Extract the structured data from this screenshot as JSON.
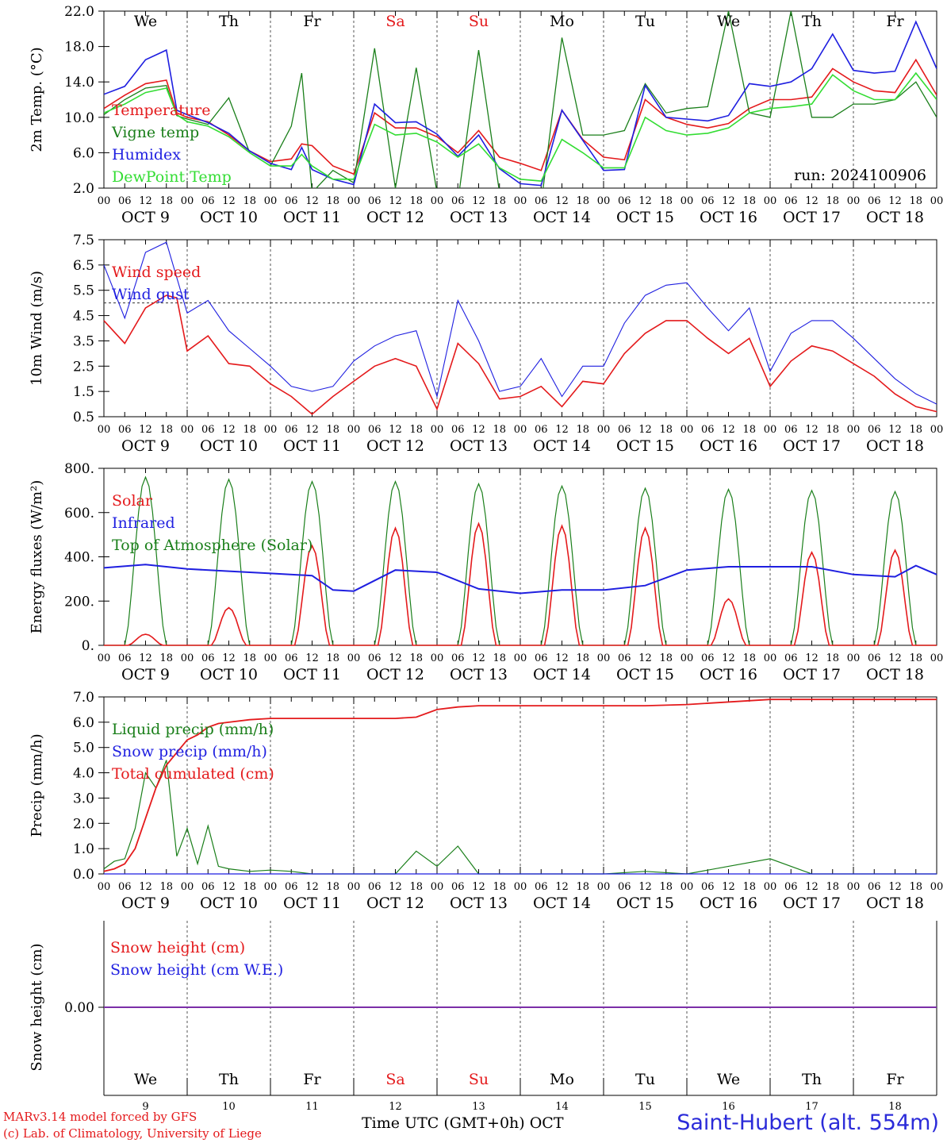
{
  "footer": {
    "model": "MARv3.14 model forced by GFS",
    "credit": "(c) Lab. of Climatology, University of Liege",
    "xlabel": "Time UTC (GMT+0h) OCT",
    "station": "Saint-Hubert (alt. 554m)"
  },
  "days": {
    "names": [
      "We",
      "Th",
      "Fr",
      "Sa",
      "Su",
      "Mo",
      "Tu",
      "We",
      "Th",
      "Fr"
    ],
    "weekend_color": "#e41a1c",
    "dates": [
      "OCT  9",
      "OCT 10",
      "OCT 11",
      "OCT 12",
      "OCT 13",
      "OCT 14",
      "OCT 15",
      "OCT 16",
      "OCT 17",
      "OCT 18"
    ],
    "numbers": [
      "9",
      "10",
      "11",
      "12",
      "13",
      "14",
      "15",
      "16",
      "17",
      "18"
    ],
    "hours": [
      "00",
      "06",
      "12",
      "18"
    ]
  },
  "chart_data": [
    {
      "type": "line",
      "ylabel": "2m Temp. (°C)",
      "ylim": [
        2.0,
        22.0
      ],
      "yticks": [
        "2.0",
        "6.0",
        "10.0",
        "14.0",
        "18.0",
        "22.0"
      ],
      "run": "run: 2024100906",
      "x_hours": [
        0,
        6,
        12,
        18,
        21,
        24,
        30,
        36,
        42,
        48,
        54,
        57,
        60,
        66,
        72,
        78,
        84,
        90,
        96,
        102,
        108,
        114,
        120,
        126,
        132,
        138,
        144,
        150,
        156,
        162,
        168,
        174,
        180,
        186,
        192,
        198,
        204,
        210,
        216,
        222,
        228,
        234,
        240
      ],
      "series": [
        {
          "name": "Temperature",
          "color": "#e41a1c",
          "values": [
            11.0,
            12.5,
            13.8,
            14.2,
            10.5,
            10.0,
            9.5,
            8.0,
            6.2,
            5.0,
            5.3,
            7.0,
            6.8,
            4.5,
            3.6,
            10.5,
            8.8,
            8.8,
            7.8,
            6.0,
            8.5,
            5.5,
            4.8,
            4.0,
            10.8,
            7.5,
            5.5,
            5.2,
            12.0,
            10.0,
            9.2,
            8.8,
            9.3,
            11.0,
            12.0,
            12.0,
            12.3,
            15.5,
            14.0,
            13.0,
            12.8,
            16.5,
            12.5
          ]
        },
        {
          "name": "Vigne temp",
          "color": "#1a7f1a",
          "values": [
            10.3,
            12.0,
            13.3,
            13.6,
            10.2,
            9.8,
            9.2,
            12.2,
            6.0,
            4.5,
            9.0,
            15.0,
            1.5,
            4.0,
            2.6,
            17.8,
            2.0,
            15.6,
            1.5,
            0.5,
            17.6,
            1.5,
            0.8,
            0.2,
            19.0,
            8.0,
            8.0,
            8.5,
            13.8,
            10.5,
            11.0,
            11.2,
            22.0,
            10.5,
            10.0,
            22.0,
            10.0,
            10.0,
            11.5,
            11.5,
            12.0,
            14.0,
            10.0
          ]
        },
        {
          "name": "Humidex",
          "color": "#1f1fe0",
          "values": [
            12.6,
            13.5,
            16.5,
            17.6,
            10.8,
            10.3,
            9.4,
            8.2,
            6.2,
            4.8,
            4.1,
            6.6,
            4.1,
            3.0,
            2.4,
            11.5,
            9.4,
            9.5,
            8.1,
            5.6,
            8.0,
            4.2,
            2.5,
            2.3,
            10.8,
            7.4,
            4.0,
            4.1,
            13.6,
            10.0,
            9.8,
            9.6,
            10.2,
            13.8,
            13.5,
            14.0,
            15.5,
            19.4,
            15.3,
            15.0,
            15.2,
            20.8,
            15.5
          ]
        },
        {
          "name": "DewPoint Temp",
          "color": "#33dd33",
          "values": [
            10.5,
            11.5,
            12.8,
            13.3,
            10.3,
            9.5,
            9.0,
            7.8,
            6.0,
            4.5,
            4.5,
            5.8,
            4.5,
            3.0,
            3.0,
            9.2,
            8.0,
            8.2,
            7.2,
            5.5,
            7.0,
            4.3,
            3.0,
            2.8,
            7.5,
            6.0,
            4.3,
            4.3,
            10.0,
            8.5,
            8.0,
            8.2,
            8.8,
            10.5,
            11.0,
            11.2,
            11.5,
            14.8,
            13.0,
            12.0,
            12.0,
            15.0,
            12.0
          ]
        }
      ]
    },
    {
      "type": "line",
      "ylabel": "10m Wind (m/s)",
      "ylim": [
        0.5,
        7.5
      ],
      "yticks": [
        "0.5",
        "1.5",
        "2.5",
        "3.5",
        "4.5",
        "5.5",
        "6.5",
        "7.5"
      ],
      "x_hours": [
        0,
        6,
        12,
        18,
        21,
        24,
        30,
        36,
        42,
        48,
        54,
        60,
        66,
        72,
        78,
        84,
        90,
        96,
        102,
        108,
        114,
        120,
        126,
        132,
        138,
        144,
        150,
        156,
        162,
        168,
        174,
        180,
        186,
        192,
        198,
        204,
        210,
        216,
        222,
        228,
        234,
        240
      ],
      "series": [
        {
          "name": "Wind speed",
          "color": "#e41a1c",
          "values": [
            4.3,
            3.4,
            4.8,
            5.3,
            5.2,
            3.1,
            3.7,
            2.6,
            2.5,
            1.8,
            1.3,
            0.6,
            1.3,
            1.9,
            2.5,
            2.8,
            2.5,
            0.8,
            3.4,
            2.6,
            1.2,
            1.3,
            1.7,
            0.9,
            1.9,
            1.8,
            3.0,
            3.8,
            4.3,
            4.3,
            3.6,
            3.0,
            3.6,
            1.7,
            2.7,
            3.3,
            3.1,
            2.6,
            2.1,
            1.4,
            0.9,
            0.7
          ]
        },
        {
          "name": "Wind gust",
          "color": "#1f1fe0",
          "values": [
            6.5,
            4.4,
            7.0,
            7.4,
            6.0,
            4.6,
            5.1,
            3.9,
            3.2,
            2.5,
            1.7,
            1.5,
            1.7,
            2.7,
            3.3,
            3.7,
            3.9,
            1.3,
            5.1,
            3.5,
            1.5,
            1.7,
            2.8,
            1.3,
            2.5,
            2.5,
            4.2,
            5.3,
            5.7,
            5.8,
            4.8,
            3.9,
            4.8,
            2.3,
            3.8,
            4.3,
            4.3,
            3.6,
            2.8,
            2.0,
            1.4,
            1.0
          ]
        }
      ],
      "reference_line": 5.0
    },
    {
      "type": "line",
      "ylabel": "Energy fluxes (W/m²)",
      "ylim": [
        0,
        800
      ],
      "yticks": [
        "0.",
        "200.",
        "400.",
        "600.",
        "800."
      ],
      "solar_peaks": [
        50,
        170,
        450,
        530,
        550,
        540,
        530,
        210,
        420,
        430
      ],
      "toa_peaks": [
        760,
        750,
        740,
        740,
        730,
        720,
        710,
        705,
        700,
        695
      ],
      "infrared": {
        "x_hours": [
          0,
          12,
          24,
          36,
          48,
          60,
          66,
          72,
          84,
          96,
          108,
          120,
          132,
          144,
          156,
          168,
          180,
          192,
          204,
          216,
          228,
          234,
          240
        ],
        "values": [
          350,
          365,
          345,
          335,
          325,
          315,
          250,
          245,
          340,
          330,
          255,
          235,
          250,
          250,
          270,
          340,
          355,
          355,
          355,
          320,
          310,
          360,
          320
        ]
      },
      "series": [
        {
          "name": "Solar",
          "color": "#e41a1c"
        },
        {
          "name": "Infrared",
          "color": "#1f1fe0"
        },
        {
          "name": "Top of Atmosphere (Solar)",
          "color": "#1a7f1a"
        }
      ]
    },
    {
      "type": "line",
      "ylabel": "Precip (mm/h)",
      "ylim": [
        0,
        7
      ],
      "yticks": [
        "0.0",
        "1.0",
        "2.0",
        "3.0",
        "4.0",
        "5.0",
        "6.0",
        "7.0"
      ],
      "x_hours": [
        0,
        3,
        6,
        9,
        12,
        15,
        18,
        21,
        24,
        27,
        30,
        33,
        36,
        42,
        48,
        54,
        60,
        84,
        90,
        96,
        102,
        108,
        120,
        144,
        156,
        168,
        192,
        204,
        216,
        240
      ],
      "series": [
        {
          "name": "Liquid precip (mm/h)",
          "color": "#1a7f1a",
          "values": [
            0.2,
            0.5,
            0.6,
            1.8,
            4.0,
            3.4,
            4.5,
            0.7,
            1.8,
            0.4,
            1.9,
            0.3,
            0.2,
            0.1,
            0.15,
            0.1,
            0.0,
            0.0,
            0.9,
            0.3,
            1.1,
            0.0,
            0.0,
            0.0,
            0.1,
            0.0,
            0.6,
            0.0,
            0.0,
            0.0
          ]
        },
        {
          "name": "Snow precip (mm/h)",
          "color": "#1f1fe0",
          "values": [
            0,
            0,
            0,
            0,
            0,
            0,
            0,
            0,
            0,
            0,
            0,
            0,
            0,
            0,
            0,
            0,
            0,
            0,
            0,
            0,
            0,
            0,
            0,
            0,
            0,
            0,
            0,
            0,
            0,
            0
          ]
        },
        {
          "name": "Total cumulated (cm)",
          "color": "#e41a1c",
          "values": [
            0.1,
            0.2,
            0.4,
            1.0,
            2.2,
            3.4,
            4.3,
            4.8,
            5.3,
            5.5,
            5.8,
            5.95,
            6.0,
            6.1,
            6.15,
            6.15,
            6.15,
            6.15,
            6.2,
            6.5,
            6.6,
            6.65,
            6.65,
            6.65,
            6.65,
            6.7,
            6.9,
            6.9,
            6.9,
            6.9
          ]
        }
      ]
    },
    {
      "type": "line",
      "ylabel": "Snow height (cm)",
      "yticks": [
        "0.00"
      ],
      "series": [
        {
          "name": "Snow height (cm)",
          "color": "#e41a1c",
          "values": [
            0.0
          ]
        },
        {
          "name": "Snow height (cm W.E.)",
          "color": "#1f1fe0",
          "values": [
            0.0
          ]
        }
      ]
    }
  ]
}
